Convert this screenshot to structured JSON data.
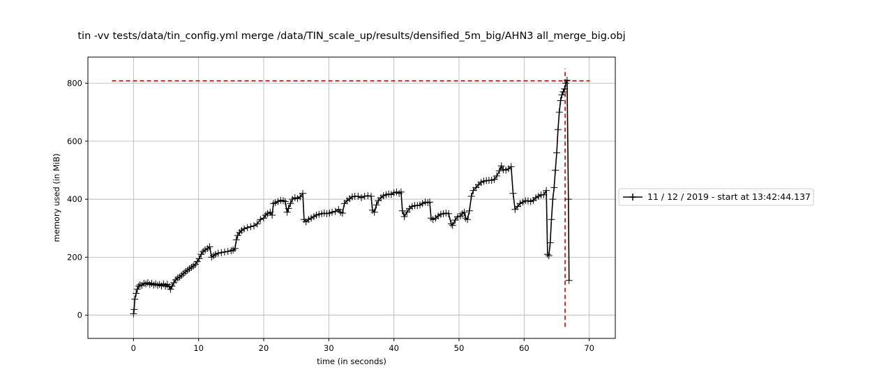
{
  "chart_data": {
    "type": "line",
    "title": "tin -vv tests/data/tin_config.yml merge /data/TIN_scale_up/results/densified_5m_big/AHN3 all_merge_big.obj",
    "xlabel": "time (in seconds)",
    "ylabel": "memory used (in MiB)",
    "xlim": [
      -7,
      74
    ],
    "ylim": [
      -80,
      890
    ],
    "x_ticks": [
      0,
      10,
      20,
      30,
      40,
      50,
      60,
      70
    ],
    "y_ticks": [
      0,
      200,
      400,
      600,
      800
    ],
    "grid": true,
    "legend_position": "right, outside plot",
    "series": [
      {
        "name": "11 / 12 / 2019 - start at 13:42:44.137",
        "color": "#000000",
        "marker": "+",
        "points": [
          [
            0.0,
            5
          ],
          [
            0.1,
            20
          ],
          [
            0.2,
            55
          ],
          [
            0.4,
            75
          ],
          [
            0.6,
            90
          ],
          [
            0.8,
            100
          ],
          [
            1.0,
            105
          ],
          [
            1.3,
            103
          ],
          [
            1.6,
            110
          ],
          [
            1.9,
            108
          ],
          [
            2.2,
            112
          ],
          [
            2.5,
            106
          ],
          [
            2.8,
            110
          ],
          [
            3.1,
            104
          ],
          [
            3.4,
            108
          ],
          [
            3.7,
            103
          ],
          [
            4.0,
            106
          ],
          [
            4.3,
            101
          ],
          [
            4.6,
            108
          ],
          [
            4.9,
            100
          ],
          [
            5.2,
            106
          ],
          [
            5.5,
            98
          ],
          [
            5.7,
            90
          ],
          [
            5.9,
            100
          ],
          [
            6.2,
            112
          ],
          [
            6.5,
            122
          ],
          [
            6.8,
            128
          ],
          [
            7.1,
            132
          ],
          [
            7.4,
            138
          ],
          [
            7.7,
            144
          ],
          [
            8.0,
            150
          ],
          [
            8.3,
            155
          ],
          [
            8.6,
            160
          ],
          [
            8.9,
            165
          ],
          [
            9.2,
            170
          ],
          [
            9.5,
            175
          ],
          [
            9.8,
            185
          ],
          [
            10.1,
            195
          ],
          [
            10.4,
            210
          ],
          [
            10.7,
            220
          ],
          [
            11.0,
            225
          ],
          [
            11.4,
            230
          ],
          [
            11.7,
            236
          ],
          [
            12.0,
            200
          ],
          [
            12.3,
            205
          ],
          [
            12.6,
            210
          ],
          [
            13.0,
            214
          ],
          [
            13.5,
            216
          ],
          [
            14.0,
            218
          ],
          [
            14.5,
            220
          ],
          [
            15.0,
            222
          ],
          [
            15.3,
            225
          ],
          [
            15.6,
            230
          ],
          [
            15.8,
            260
          ],
          [
            16.0,
            275
          ],
          [
            16.3,
            285
          ],
          [
            16.6,
            292
          ],
          [
            17.0,
            298
          ],
          [
            17.5,
            302
          ],
          [
            18.0,
            305
          ],
          [
            18.5,
            308
          ],
          [
            19.0,
            315
          ],
          [
            19.5,
            330
          ],
          [
            20.0,
            335
          ],
          [
            20.3,
            345
          ],
          [
            20.6,
            350
          ],
          [
            21.0,
            355
          ],
          [
            21.3,
            345
          ],
          [
            21.5,
            385
          ],
          [
            21.8,
            388
          ],
          [
            22.2,
            392
          ],
          [
            22.6,
            396
          ],
          [
            23.0,
            395
          ],
          [
            23.3,
            392
          ],
          [
            23.6,
            355
          ],
          [
            23.8,
            368
          ],
          [
            24.1,
            385
          ],
          [
            24.4,
            400
          ],
          [
            24.8,
            405
          ],
          [
            25.2,
            402
          ],
          [
            25.6,
            408
          ],
          [
            26.0,
            420
          ],
          [
            26.2,
            330
          ],
          [
            26.5,
            322
          ],
          [
            26.9,
            330
          ],
          [
            27.3,
            335
          ],
          [
            27.7,
            340
          ],
          [
            28.1,
            345
          ],
          [
            28.5,
            348
          ],
          [
            28.9,
            350
          ],
          [
            29.3,
            352
          ],
          [
            29.7,
            350
          ],
          [
            30.1,
            352
          ],
          [
            30.5,
            355
          ],
          [
            31.0,
            358
          ],
          [
            31.5,
            365
          ],
          [
            31.8,
            355
          ],
          [
            32.1,
            352
          ],
          [
            32.4,
            385
          ],
          [
            32.8,
            395
          ],
          [
            33.2,
            402
          ],
          [
            33.6,
            408
          ],
          [
            34.0,
            410
          ],
          [
            34.5,
            410
          ],
          [
            35.0,
            405
          ],
          [
            35.5,
            410
          ],
          [
            36.0,
            412
          ],
          [
            36.5,
            410
          ],
          [
            36.7,
            362
          ],
          [
            37.0,
            355
          ],
          [
            37.3,
            380
          ],
          [
            37.6,
            395
          ],
          [
            38.0,
            405
          ],
          [
            38.4,
            412
          ],
          [
            38.8,
            415
          ],
          [
            39.2,
            418
          ],
          [
            39.6,
            416
          ],
          [
            40.0,
            422
          ],
          [
            40.4,
            425
          ],
          [
            40.8,
            420
          ],
          [
            41.1,
            425
          ],
          [
            41.3,
            360
          ],
          [
            41.6,
            340
          ],
          [
            42.0,
            355
          ],
          [
            42.4,
            368
          ],
          [
            42.8,
            375
          ],
          [
            43.2,
            378
          ],
          [
            43.6,
            378
          ],
          [
            44.0,
            380
          ],
          [
            44.4,
            385
          ],
          [
            44.8,
            390
          ],
          [
            45.2,
            388
          ],
          [
            45.5,
            390
          ],
          [
            45.7,
            335
          ],
          [
            46.0,
            330
          ],
          [
            46.4,
            335
          ],
          [
            46.8,
            342
          ],
          [
            47.2,
            348
          ],
          [
            47.6,
            350
          ],
          [
            48.0,
            352
          ],
          [
            48.4,
            350
          ],
          [
            48.8,
            315
          ],
          [
            49.0,
            310
          ],
          [
            49.4,
            328
          ],
          [
            49.8,
            340
          ],
          [
            50.2,
            342
          ],
          [
            50.5,
            350
          ],
          [
            50.8,
            355
          ],
          [
            51.0,
            335
          ],
          [
            51.3,
            330
          ],
          [
            51.6,
            360
          ],
          [
            51.9,
            410
          ],
          [
            52.2,
            430
          ],
          [
            52.6,
            440
          ],
          [
            53.0,
            450
          ],
          [
            53.4,
            458
          ],
          [
            53.8,
            462
          ],
          [
            54.2,
            464
          ],
          [
            54.6,
            465
          ],
          [
            55.0,
            465
          ],
          [
            55.4,
            468
          ],
          [
            55.8,
            480
          ],
          [
            56.2,
            498
          ],
          [
            56.5,
            515
          ],
          [
            56.8,
            502
          ],
          [
            57.2,
            500
          ],
          [
            57.6,
            505
          ],
          [
            58.0,
            512
          ],
          [
            58.3,
            420
          ],
          [
            58.6,
            365
          ],
          [
            59.0,
            375
          ],
          [
            59.4,
            385
          ],
          [
            59.8,
            390
          ],
          [
            60.2,
            395
          ],
          [
            60.6,
            394
          ],
          [
            61.0,
            392
          ],
          [
            61.4,
            396
          ],
          [
            61.8,
            405
          ],
          [
            62.2,
            410
          ],
          [
            62.6,
            415
          ],
          [
            63.0,
            415
          ],
          [
            63.4,
            430
          ],
          [
            63.6,
            210
          ],
          [
            63.8,
            205
          ],
          [
            64.0,
            250
          ],
          [
            64.2,
            330
          ],
          [
            64.4,
            400
          ],
          [
            64.6,
            440
          ],
          [
            64.8,
            500
          ],
          [
            65.0,
            560
          ],
          [
            65.2,
            640
          ],
          [
            65.4,
            700
          ],
          [
            65.6,
            740
          ],
          [
            65.8,
            760
          ],
          [
            66.0,
            770
          ],
          [
            66.2,
            780
          ],
          [
            66.4,
            800
          ],
          [
            66.6,
            810
          ],
          [
            66.8,
            400
          ],
          [
            66.9,
            120
          ]
        ]
      }
    ],
    "reference_lines": [
      {
        "orientation": "horizontal",
        "value": 808,
        "x_from": -3.3,
        "x_to": 70.1,
        "color": "#d62728",
        "style": "dashed"
      },
      {
        "orientation": "vertical",
        "value": 66.3,
        "y_from": -40,
        "y_to": 850,
        "color": "#d62728",
        "style": "dashed"
      }
    ]
  }
}
